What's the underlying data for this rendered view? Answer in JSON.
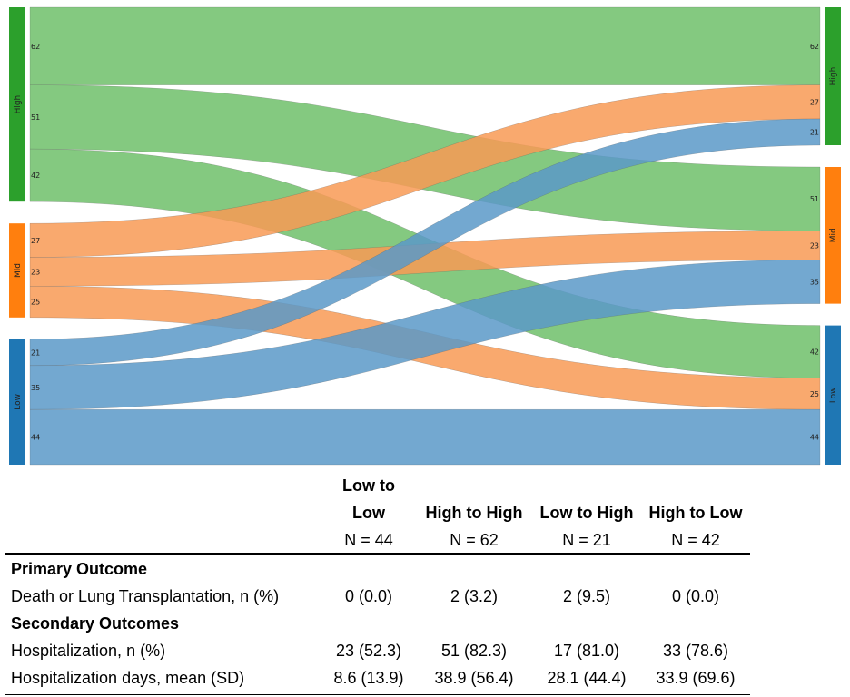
{
  "chart_data": {
    "type": "sankey",
    "title": "",
    "groups": [
      {
        "name": "High",
        "color": "#2ca02c",
        "flow_color": "#6fbf6a"
      },
      {
        "name": "Mid",
        "color": "#ff7f0e",
        "flow_color": "#f89a55"
      },
      {
        "name": "Low",
        "color": "#1f77b4",
        "flow_color": "#5b99c8"
      }
    ],
    "left_order": [
      "High",
      "Mid",
      "Low"
    ],
    "right_order": [
      "High",
      "Mid",
      "Low"
    ],
    "flows": [
      {
        "from": "High",
        "to": "High",
        "value": 62
      },
      {
        "from": "High",
        "to": "Mid",
        "value": 51
      },
      {
        "from": "High",
        "to": "Low",
        "value": 42
      },
      {
        "from": "Mid",
        "to": "High",
        "value": 27
      },
      {
        "from": "Mid",
        "to": "Mid",
        "value": 23
      },
      {
        "from": "Mid",
        "to": "Low",
        "value": 25
      },
      {
        "from": "Low",
        "to": "High",
        "value": 21
      },
      {
        "from": "Low",
        "to": "Mid",
        "value": 35
      },
      {
        "from": "Low",
        "to": "Low",
        "value": 44
      }
    ]
  },
  "table": {
    "columns": [
      {
        "title_lines": [
          "Low to",
          "Low"
        ],
        "n": "N = 44"
      },
      {
        "title_lines": [
          "High to High"
        ],
        "n": "N = 62"
      },
      {
        "title_lines": [
          "Low to High"
        ],
        "n": "N = 21"
      },
      {
        "title_lines": [
          "High to Low"
        ],
        "n": "N = 42"
      }
    ],
    "rows": [
      {
        "label": "Primary Outcome",
        "section": true,
        "cells": []
      },
      {
        "label": "Death or Lung Transplantation, n (%)",
        "section": false,
        "cells": [
          "0 (0.0)",
          "2 (3.2)",
          "2 (9.5)",
          "0 (0.0)"
        ]
      },
      {
        "label": "Secondary Outcomes",
        "section": true,
        "cells": []
      },
      {
        "label": "Hospitalization, n (%)",
        "section": false,
        "cells": [
          "23 (52.3)",
          "51 (82.3)",
          "17 (81.0)",
          "33 (78.6)"
        ]
      },
      {
        "label": "Hospitalization days, mean (SD)",
        "section": false,
        "cells": [
          "8.6 (13.9)",
          "38.9 (56.4)",
          "28.1 (44.4)",
          "33.9 (69.6)"
        ]
      }
    ]
  }
}
